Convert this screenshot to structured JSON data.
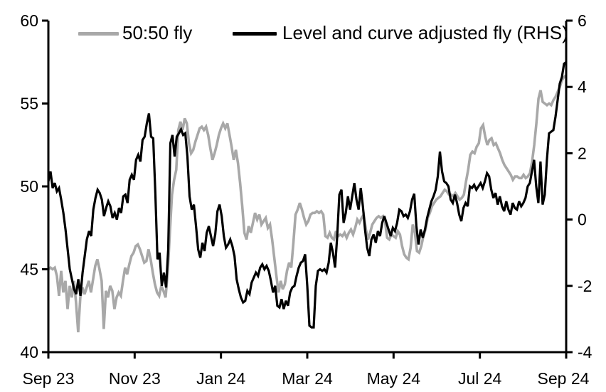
{
  "chart_data": {
    "type": "line",
    "title": "",
    "xlabel": "",
    "ylabel_left": "",
    "ylabel_right": "",
    "grid": false,
    "legend_position": "top",
    "x_tick_labels": [
      "Sep 23",
      "Nov 23",
      "Jan 24",
      "Mar 24",
      "May 24",
      "Jul 24",
      "Sep 24"
    ],
    "left_axis": {
      "range": [
        40,
        60
      ],
      "ticks": [
        40,
        45,
        50,
        55,
        60
      ]
    },
    "right_axis": {
      "range": [
        -4,
        6
      ],
      "ticks": [
        -4,
        -2,
        0,
        2,
        4,
        6
      ]
    },
    "axis_color": "#000000",
    "series": [
      {
        "name": "50:50 fly",
        "axis": "left",
        "color": "#a8a8a8",
        "values": [
          45,
          45.1,
          45,
          45.1,
          44.6,
          43.4,
          44.9,
          43.6,
          44.3,
          42.6,
          44,
          43.3,
          44.3,
          43,
          41.2,
          43.3,
          43.9,
          43.5,
          43.9,
          44.3,
          43.6,
          44.4,
          45.2,
          45.6,
          45,
          44.3,
          41.4,
          43.7,
          43.3,
          44,
          43.7,
          42.6,
          43.3,
          43.6,
          43.4,
          44.3,
          45.1,
          44.7,
          45.3,
          45.8,
          46,
          46.4,
          46.5,
          46.2,
          45.8,
          45.4,
          45.5,
          46.2,
          45.6,
          44.8,
          44.1,
          43.6,
          43.4,
          44,
          43.7,
          43.3,
          44.8,
          47.2,
          49.5,
          50.4,
          51,
          53.4,
          53.9,
          53.4,
          54.1,
          53.8,
          52.6,
          52,
          52.2,
          52.7,
          53.1,
          53.5,
          53.6,
          53.4,
          53.6,
          53.1,
          52.3,
          51.6,
          52,
          52.5,
          53.1,
          53.5,
          53.8,
          53.5,
          53.8,
          53.1,
          52.4,
          51.6,
          52.2,
          51.4,
          50.2,
          48.8,
          47.2,
          46.8,
          47.6,
          47.2,
          47.8,
          48.4,
          48,
          48.3,
          47.7,
          47.9,
          48.1,
          47.5,
          47.7,
          46.8,
          45.7,
          44.6,
          43.6,
          44.3,
          43.8,
          44.1,
          44.9,
          45.4,
          45.1,
          46.6,
          48.3,
          48.6,
          49,
          48.6,
          48.1,
          47.7,
          47.9,
          48.3,
          48.4,
          48.4,
          48.5,
          48.4,
          48.5,
          48.3,
          47,
          46.9,
          47.2,
          46.9,
          46.8,
          47.3,
          47,
          47.1,
          47,
          47.2,
          46.9,
          47.2,
          47.4,
          47.1,
          47.5,
          48,
          47.8,
          48.1,
          48.3,
          47.4,
          46.8,
          47.2,
          47.7,
          47.9,
          48.1,
          48.2,
          48.1,
          48.2,
          47.9,
          46.9,
          46.8,
          47.1,
          47,
          46.9,
          47.3,
          47.1,
          46.4,
          45.9,
          45.7,
          45.6,
          46.3,
          47.7,
          47.2,
          46.1,
          46,
          46.4,
          47,
          47.4,
          48.1,
          48.4,
          48.8,
          49,
          49.2,
          49.3,
          49.4,
          49.6,
          49.8,
          49.7,
          49.5,
          49.5,
          49.4,
          49.6,
          49.4,
          49.2,
          49.3,
          49.5,
          50.3,
          51,
          51.9,
          52.1,
          52,
          52.4,
          52.6,
          53.5,
          53.7,
          53,
          52.5,
          52.8,
          52.9,
          52.5,
          52.6,
          52.3,
          52,
          51.6,
          51.3,
          51.1,
          50.9,
          50.7,
          50.4,
          50.6,
          50.6,
          50.5,
          50.5,
          50.7,
          50.5,
          50.6,
          50.8,
          51.5,
          52.5,
          53.8,
          55.3,
          55.8,
          55.1,
          55,
          54.9,
          55,
          54.9,
          55.2,
          55.4,
          55.7,
          56,
          56.4,
          56.6,
          56.7
        ]
      },
      {
        "name": "Level and curve adjusted fly (RHS)",
        "axis": "right",
        "color": "#000000",
        "values": [
          1.15,
          1.45,
          0.95,
          1.1,
          0.85,
          0.95,
          0.6,
          0.2,
          -0.3,
          -0.9,
          -1.5,
          -1.8,
          -2.1,
          -2.25,
          -1.8,
          -2.3,
          -1.6,
          -1.1,
          -0.6,
          -0.35,
          -0.5,
          0.3,
          0.65,
          0.9,
          0.8,
          0.6,
          0.1,
          0.35,
          0.55,
          0.4,
          0.05,
          0.2,
          0,
          0.35,
          0.2,
          0.7,
          0.75,
          0.5,
          1.2,
          1.35,
          1.2,
          1.8,
          1.95,
          1.75,
          2.4,
          2.5,
          2.9,
          3.2,
          2.5,
          2.45,
          0.8,
          -1.2,
          -1,
          -2,
          -1.6,
          -2.05,
          -0.9,
          2.3,
          2.55,
          1.9,
          2.5,
          2.6,
          2.72,
          2.55,
          2.6,
          1.9,
          0.7,
          0.3,
          0.45,
          -0.2,
          -0.9,
          -1.15,
          -0.7,
          -0.95,
          -0.4,
          -0.2,
          -0.5,
          -0.8,
          -0.45,
          0.25,
          0.45,
          0.1,
          -0.5,
          -0.85,
          -0.75,
          -0.6,
          -0.8,
          -1.1,
          -1.8,
          -2.1,
          -2.35,
          -2.5,
          -2.45,
          -2.15,
          -2.25,
          -1.9,
          -1.75,
          -1.6,
          -1.7,
          -1.45,
          -1.35,
          -1.5,
          -1.4,
          -1.55,
          -1.85,
          -2.2,
          -2,
          -2.6,
          -2.65,
          -2.4,
          -2.7,
          -2.45,
          -2.6,
          -2.2,
          -2.05,
          -2,
          -1.7,
          -1.45,
          -1.3,
          -1.25,
          -1.05,
          -2,
          -3.2,
          -3.25,
          -3.25,
          -2,
          -1.55,
          -1.5,
          -1.55,
          -1.5,
          -1.6,
          -1.3,
          -0.7,
          -1,
          -1.45,
          -0.5,
          0.75,
          0.9,
          -0.1,
          0.2,
          0.7,
          0.3,
          0.7,
          1.1,
          0.6,
          0.3,
          0.95,
          0.4,
          -0.3,
          -0.85,
          -1.1,
          -0.6,
          -0.45,
          -0.7,
          -0.35,
          -0.5,
          -0.1,
          0.1,
          -0.1,
          -0.3,
          -0.5,
          -0.25,
          -0.35,
          -0.1,
          0.3,
          0.25,
          0.1,
          0.15,
          0.05,
          0.25,
          0.6,
          0.78,
          -0.2,
          -0.75,
          -0.3,
          -0.55,
          -0.3,
          0.05,
          0.3,
          0.55,
          0.7,
          0.9,
          1.3,
          2.05,
          1.45,
          1.15,
          1.1,
          1,
          0.6,
          0.5,
          0.75,
          0.5,
          0.15,
          -0.05,
          0.35,
          0.5,
          0.4,
          1,
          0.95,
          1.05,
          0.9,
          1,
          1.1,
          0.95,
          1.15,
          1.4,
          1.3,
          0.9,
          0.65,
          0.8,
          0.45,
          0.7,
          0.4,
          0.25,
          0.55,
          0.3,
          0.15,
          0.5,
          0.35,
          0.3,
          0.55,
          0.4,
          0.5,
          0.65,
          1,
          1.1,
          1.45,
          1.8,
          1,
          0.5,
          1.75,
          0.45,
          0.75,
          1.8,
          2.6,
          2.65,
          2.7,
          3.1,
          3.6,
          4.1,
          4.3,
          4.7,
          4.75
        ]
      }
    ]
  },
  "legend": {
    "item1_label": "50:50 fly",
    "item2_label": "Level and curve adjusted fly (RHS)"
  }
}
